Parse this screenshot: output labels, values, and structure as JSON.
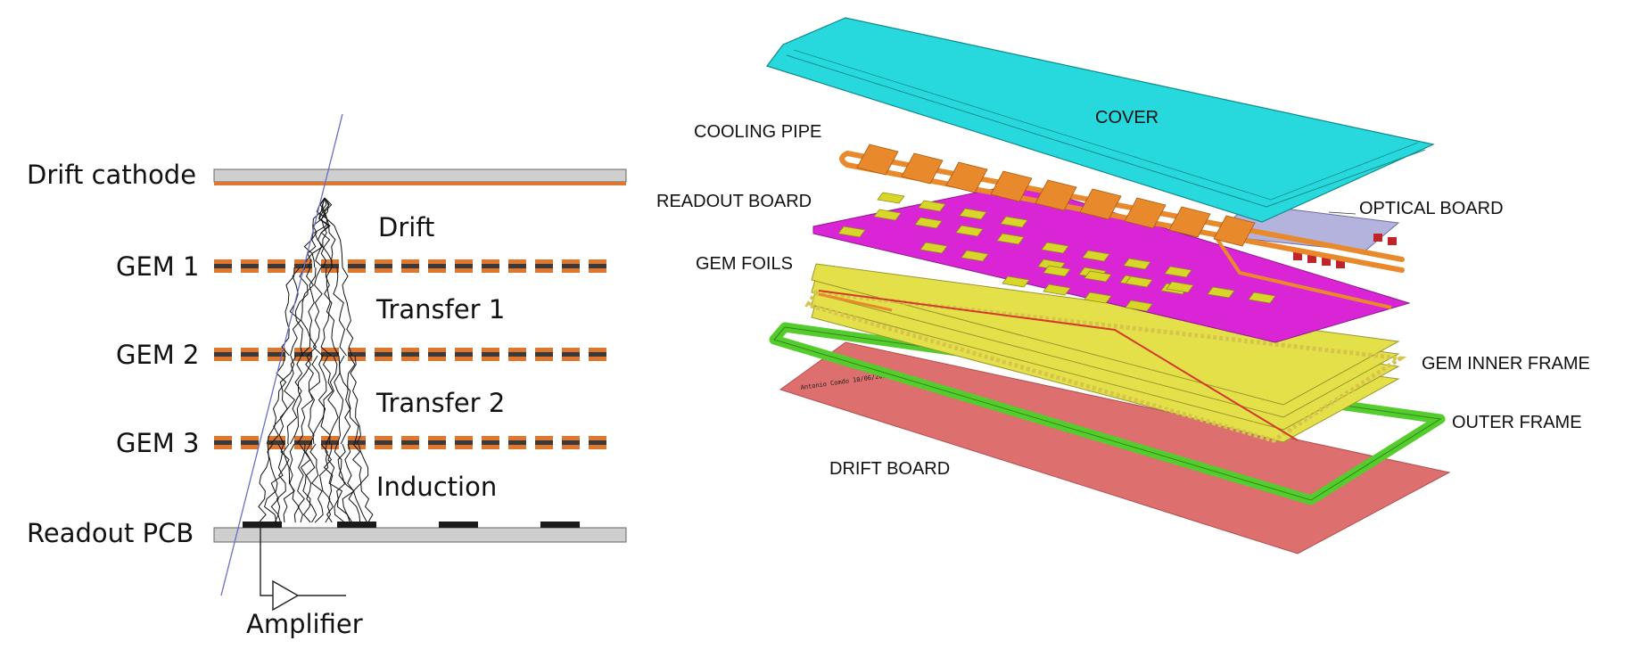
{
  "left_diagram": {
    "labels": {
      "drift_cathode": "Drift cathode",
      "gem1": "GEM 1",
      "gem2": "GEM 2",
      "gem3": "GEM 3",
      "readout_pcb": "Readout PCB",
      "drift": "Drift",
      "transfer1": "Transfer 1",
      "transfer2": "Transfer 2",
      "induction": "Induction",
      "amplifier": "Amplifier"
    },
    "colors": {
      "electrode_orange": "#e0772e",
      "foil_dark": "#3a3a3a",
      "pcb_gray": "#cfcfcf",
      "pad_black": "#1a1a1a",
      "track_blue": "#6a6ec4"
    }
  },
  "right_diagram": {
    "labels": {
      "cover": "COVER",
      "cooling_pipe": "COOLING PIPE",
      "readout_board": "READOUT BOARD",
      "optical_board": "OPTICAL BOARD",
      "gem_foils": "GEM FOILS",
      "gem_inner_frame": "GEM INNER FRAME",
      "outer_frame": "OUTER FRAME",
      "drift_board": "DRIFT BOARD",
      "credit": "Antonio Comdo   10/06/2014"
    },
    "colors": {
      "cover": "#27d9dc",
      "cooling_pipe": "#e88a2c",
      "readout_board": "#d925d6",
      "pads": "#d9d62a",
      "optical_board": "#b3b3dd",
      "gem_foils": "#e4e04a",
      "gem_inner_frame": "#d6c54a",
      "outer_frame": "#55cc2e",
      "drift_board": "#dd6f6f"
    }
  }
}
